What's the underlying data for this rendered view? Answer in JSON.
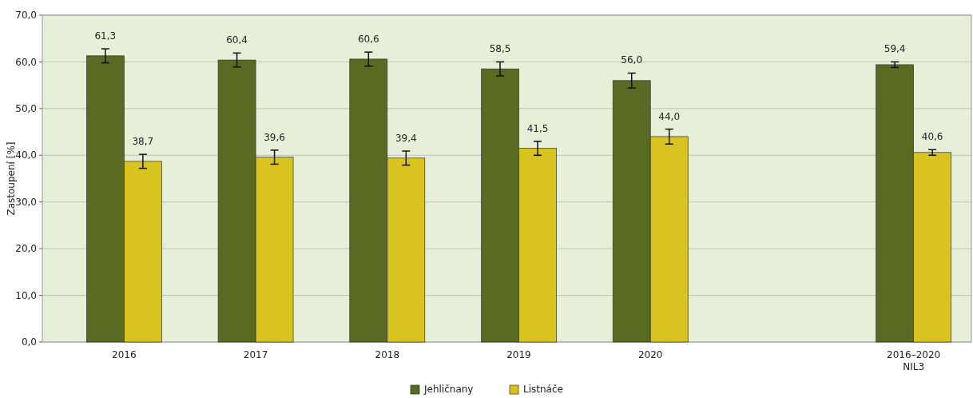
{
  "chart_data": {
    "type": "bar",
    "ylabel": "Zastoupení [%]",
    "categories": [
      "2016",
      "2017",
      "2018",
      "2019",
      "2020",
      null,
      "2016–2020\nNIL3"
    ],
    "series": [
      {
        "name": "Jehličnany",
        "color": "#596b23",
        "values": [
          61.3,
          60.4,
          60.6,
          58.5,
          56.0,
          null,
          59.4
        ],
        "errors": [
          1.5,
          1.5,
          1.5,
          1.5,
          1.6,
          null,
          0.6
        ],
        "value_labels": [
          "61,3",
          "60,4",
          "60,6",
          "58,5",
          "56,0",
          null,
          "59,4"
        ]
      },
      {
        "name": "Listnáče",
        "color": "#d9c31f",
        "values": [
          38.7,
          39.6,
          39.4,
          41.5,
          44.0,
          null,
          40.6
        ],
        "errors": [
          1.5,
          1.5,
          1.5,
          1.5,
          1.6,
          null,
          0.6
        ],
        "value_labels": [
          "38,7",
          "39,6",
          "39,4",
          "41,5",
          "44,0",
          null,
          "40,6"
        ]
      }
    ],
    "ylim": [
      0,
      70
    ],
    "yticks": [
      {
        "value": 0,
        "label": "0,0"
      },
      {
        "value": 10,
        "label": "10,0"
      },
      {
        "value": 20,
        "label": "20,0"
      },
      {
        "value": 30,
        "label": "30,0"
      },
      {
        "value": 40,
        "label": "40,0"
      },
      {
        "value": 50,
        "label": "50,0"
      },
      {
        "value": 60,
        "label": "60,0"
      },
      {
        "value": 70,
        "label": "70,0"
      }
    ],
    "grid": "y",
    "legend": "bottom"
  }
}
